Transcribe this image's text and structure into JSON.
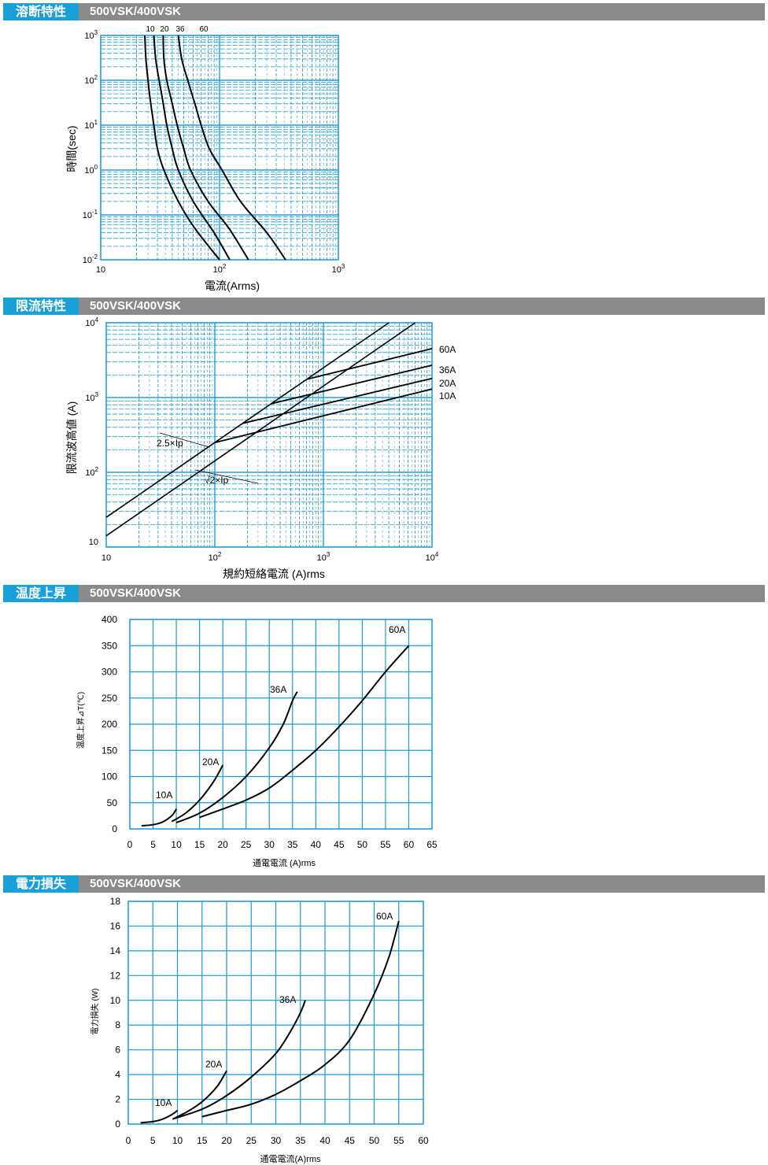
{
  "sections": [
    {
      "title": "溶断特性",
      "model": "500VSK/400VSK"
    },
    {
      "title": "限流特性",
      "model": "500VSK/400VSK"
    },
    {
      "title": "温度上昇",
      "model": "500VSK/400VSK"
    },
    {
      "title": "電力損失",
      "model": "500VSK/400VSK"
    }
  ],
  "colors": {
    "grid": "#1a9bd6",
    "header_bar": "#8a8a8a",
    "header_tag": "#1aa0d8",
    "curve": "#000000"
  },
  "chart_data": [
    {
      "type": "line",
      "xscale": "log",
      "yscale": "log",
      "xlim": [
        10,
        1000
      ],
      "ylim": [
        0.01,
        1000
      ],
      "xlabel": "電流(Arms)",
      "ylabel": "時間(sec)",
      "x_ticks": [
        {
          "v": 10,
          "base": "10",
          "exp": ""
        },
        {
          "v": 100,
          "base": "10",
          "exp": "2"
        },
        {
          "v": 1000,
          "base": "10",
          "exp": "3"
        }
      ],
      "y_ticks": [
        {
          "v": 0.01,
          "base": "10",
          "exp": "-2"
        },
        {
          "v": 0.1,
          "base": "10",
          "exp": "-1"
        },
        {
          "v": 1,
          "base": "10",
          "exp": "0"
        },
        {
          "v": 10,
          "base": "10",
          "exp": "1"
        },
        {
          "v": 100,
          "base": "10",
          "exp": "2"
        },
        {
          "v": 1000,
          "base": "10",
          "exp": "3"
        }
      ],
      "grid": true,
      "series": [
        {
          "name": "10",
          "points": [
            [
              23.5,
              1000
            ],
            [
              24,
              300
            ],
            [
              25,
              100
            ],
            [
              26,
              40
            ],
            [
              28,
              10
            ],
            [
              30,
              3
            ],
            [
              34,
              1
            ],
            [
              45,
              0.2
            ],
            [
              62,
              0.05
            ],
            [
              100,
              0.01
            ]
          ]
        },
        {
          "name": "20",
          "points": [
            [
              28,
              1000
            ],
            [
              29,
              300
            ],
            [
              31,
              100
            ],
            [
              33,
              40
            ],
            [
              36,
              10
            ],
            [
              40,
              3
            ],
            [
              45,
              1
            ],
            [
              60,
              0.2
            ],
            [
              90,
              0.04
            ],
            [
              122,
              0.01
            ]
          ]
        },
        {
          "name": "36",
          "points": [
            [
              33.5,
              1000
            ],
            [
              34,
              300
            ],
            [
              36,
              100
            ],
            [
              40,
              30
            ],
            [
              44,
              10
            ],
            [
              50,
              3
            ],
            [
              57,
              1
            ],
            [
              80,
              0.2
            ],
            [
              120,
              0.05
            ],
            [
              175,
              0.01
            ]
          ]
        },
        {
          "name": "60",
          "points": [
            [
              45,
              1000
            ],
            [
              48,
              300
            ],
            [
              54,
              100
            ],
            [
              62,
              30
            ],
            [
              70,
              10
            ],
            [
              82,
              3
            ],
            [
              105,
              1
            ],
            [
              150,
              0.2
            ],
            [
              250,
              0.04
            ],
            [
              360,
              0.01
            ]
          ]
        }
      ]
    },
    {
      "type": "line",
      "xscale": "log",
      "yscale": "log",
      "xlim": [
        10,
        10000
      ],
      "ylim": [
        10,
        10000
      ],
      "xlabel": "規約短絡電流 (A)rms",
      "ylabel": "限流波高値 (A)",
      "x_ticks": [
        {
          "v": 10,
          "base": "10",
          "exp": ""
        },
        {
          "v": 100,
          "base": "10",
          "exp": "2"
        },
        {
          "v": 1000,
          "base": "10",
          "exp": "3"
        },
        {
          "v": 10000,
          "base": "10",
          "exp": "4"
        }
      ],
      "y_ticks": [
        {
          "v": 10,
          "base": "10",
          "exp": ""
        },
        {
          "v": 100,
          "base": "10",
          "exp": "2"
        },
        {
          "v": 1000,
          "base": "10",
          "exp": "3"
        },
        {
          "v": 10000,
          "base": "10",
          "exp": "4"
        }
      ],
      "grid": true,
      "reference_lines": [
        {
          "label": "2.5×Ip",
          "points": [
            [
              10,
              25
            ],
            [
              4000,
              10000
            ]
          ]
        },
        {
          "label": "√2×Ip",
          "points": [
            [
              10,
              14.14
            ],
            [
              7000,
              10000
            ]
          ]
        }
      ],
      "series": [
        {
          "name": "60A",
          "points": [
            [
              700,
              1750
            ],
            [
              10000,
              4500
            ]
          ]
        },
        {
          "name": "36A",
          "points": [
            [
              330,
              825
            ],
            [
              10000,
              2700
            ]
          ]
        },
        {
          "name": "20A",
          "points": [
            [
              180,
              450
            ],
            [
              10000,
              1800
            ]
          ]
        },
        {
          "name": "10A",
          "points": [
            [
              100,
              250
            ],
            [
              10000,
              1300
            ]
          ]
        }
      ]
    },
    {
      "type": "line",
      "xlim": [
        0,
        65
      ],
      "ylim": [
        0,
        400
      ],
      "xlabel": "通電電流 (A)rms",
      "ylabel": "温度上昇⊿T(℃)",
      "x_ticks": [
        0,
        5,
        10,
        15,
        20,
        25,
        30,
        35,
        40,
        45,
        50,
        55,
        60,
        65
      ],
      "y_ticks": [
        0,
        50,
        100,
        150,
        200,
        250,
        300,
        350,
        400
      ],
      "grid": true,
      "series": [
        {
          "name": "10A",
          "points": [
            [
              2.5,
              6
            ],
            [
              5,
              8
            ],
            [
              7,
              13
            ],
            [
              9,
              25
            ],
            [
              10,
              38
            ]
          ]
        },
        {
          "name": "20A",
          "points": [
            [
              9,
              14
            ],
            [
              12,
              30
            ],
            [
              15,
              55
            ],
            [
              18,
              90
            ],
            [
              20,
              122
            ]
          ]
        },
        {
          "name": "36A",
          "points": [
            [
              10,
              12
            ],
            [
              15,
              30
            ],
            [
              20,
              60
            ],
            [
              25,
              100
            ],
            [
              30,
              155
            ],
            [
              33,
              200
            ],
            [
              35,
              245
            ],
            [
              36,
              262
            ]
          ]
        },
        {
          "name": "60A",
          "points": [
            [
              15,
              22
            ],
            [
              20,
              38
            ],
            [
              25,
              55
            ],
            [
              30,
              78
            ],
            [
              35,
              112
            ],
            [
              40,
              150
            ],
            [
              45,
              195
            ],
            [
              50,
              245
            ],
            [
              55,
              300
            ],
            [
              60,
              350
            ]
          ]
        }
      ]
    },
    {
      "type": "line",
      "xlim": [
        0,
        60
      ],
      "ylim": [
        0,
        18
      ],
      "xlabel": "通電電流(A)rms",
      "ylabel": "電力損失 (W)",
      "x_ticks": [
        0,
        5,
        10,
        15,
        20,
        25,
        30,
        35,
        40,
        45,
        50,
        55,
        60
      ],
      "y_ticks": [
        0,
        2,
        4,
        6,
        8,
        10,
        12,
        14,
        16,
        18
      ],
      "grid": true,
      "series": [
        {
          "name": "10A",
          "points": [
            [
              2.5,
              0.1
            ],
            [
              5,
              0.2
            ],
            [
              7,
              0.4
            ],
            [
              9,
              0.8
            ],
            [
              10,
              1.1
            ]
          ]
        },
        {
          "name": "20A",
          "points": [
            [
              9,
              0.4
            ],
            [
              12,
              1.0
            ],
            [
              15,
              1.8
            ],
            [
              18,
              3.0
            ],
            [
              20,
              4.3
            ]
          ]
        },
        {
          "name": "36A",
          "points": [
            [
              9,
              0.4
            ],
            [
              15,
              1.2
            ],
            [
              20,
              2.3
            ],
            [
              25,
              3.8
            ],
            [
              30,
              5.7
            ],
            [
              33,
              7.5
            ],
            [
              35,
              9.0
            ],
            [
              36,
              10.0
            ]
          ]
        },
        {
          "name": "60A",
          "points": [
            [
              15,
              0.6
            ],
            [
              20,
              1.1
            ],
            [
              25,
              1.6
            ],
            [
              30,
              2.4
            ],
            [
              35,
              3.5
            ],
            [
              40,
              4.8
            ],
            [
              45,
              6.8
            ],
            [
              50,
              10.5
            ],
            [
              53,
              13.5
            ],
            [
              55,
              16.4
            ]
          ]
        }
      ]
    }
  ]
}
